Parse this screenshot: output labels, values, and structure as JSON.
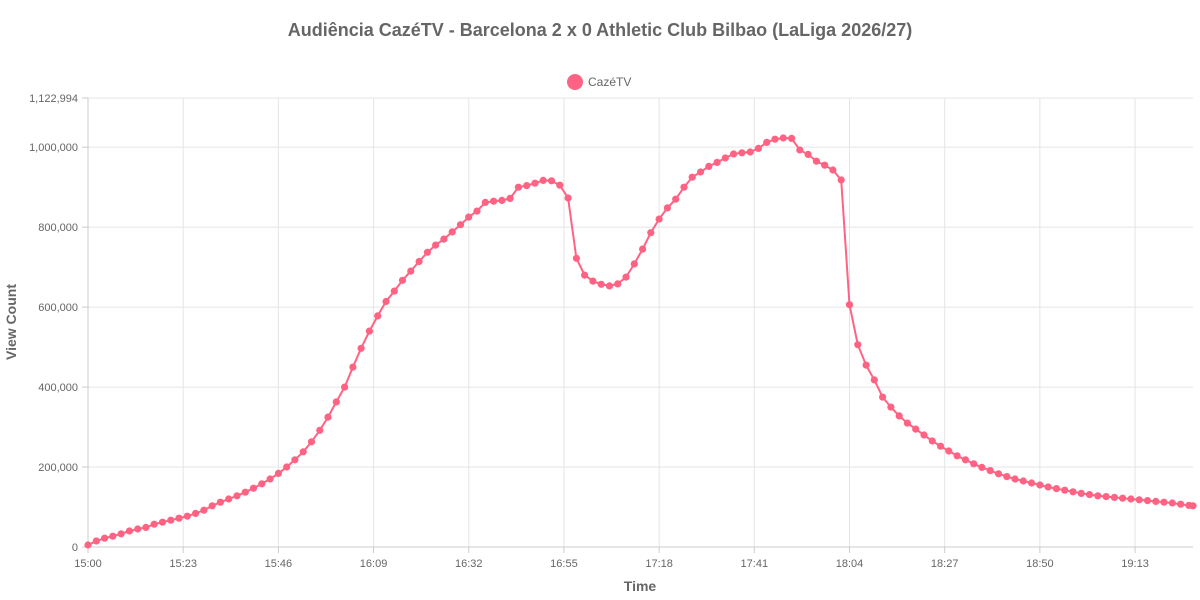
{
  "chart_data": {
    "type": "line",
    "title": "Audiência CazéTV - Barcelona 2 x 0 Athletic Club Bilbao (LaLiga 2026/27)",
    "xlabel": "Time",
    "ylabel": "View Count",
    "ylim": [
      0,
      1122994
    ],
    "y_ticks": [
      0,
      200000,
      400000,
      600000,
      800000,
      1000000,
      1122994
    ],
    "y_tick_labels": [
      "0",
      "200,000",
      "400,000",
      "600,000",
      "800,000",
      "1,000,000",
      "1,122,994"
    ],
    "x_ticks": [
      "15:00",
      "15:23",
      "15:46",
      "16:09",
      "16:32",
      "16:55",
      "17:18",
      "17:41",
      "18:04",
      "18:27",
      "18:50",
      "19:13"
    ],
    "xlim": [
      "15:00",
      "19:27"
    ],
    "grid": true,
    "legend": "top-center",
    "series": [
      {
        "name": "CazéTV",
        "color": "#ff6384",
        "points": [
          [
            "15:00",
            5000
          ],
          [
            "15:02",
            15000
          ],
          [
            "15:04",
            22000
          ],
          [
            "15:06",
            27000
          ],
          [
            "15:08",
            33000
          ],
          [
            "15:10",
            40000
          ],
          [
            "15:12",
            45000
          ],
          [
            "15:14",
            49000
          ],
          [
            "15:16",
            57000
          ],
          [
            "15:18",
            62000
          ],
          [
            "15:20",
            67000
          ],
          [
            "15:22",
            72000
          ],
          [
            "15:24",
            77000
          ],
          [
            "15:26",
            84000
          ],
          [
            "15:28",
            92000
          ],
          [
            "15:30",
            103000
          ],
          [
            "15:32",
            112000
          ],
          [
            "15:34",
            120000
          ],
          [
            "15:36",
            128000
          ],
          [
            "15:38",
            137000
          ],
          [
            "15:40",
            147000
          ],
          [
            "15:42",
            158000
          ],
          [
            "15:44",
            170000
          ],
          [
            "15:46",
            184000
          ],
          [
            "15:48",
            200000
          ],
          [
            "15:50",
            218000
          ],
          [
            "15:52",
            238000
          ],
          [
            "15:54",
            263000
          ],
          [
            "15:56",
            292000
          ],
          [
            "15:58",
            325000
          ],
          [
            "16:00",
            363000
          ],
          [
            "16:02",
            400000
          ],
          [
            "16:04",
            450000
          ],
          [
            "16:06",
            497000
          ],
          [
            "16:08",
            540000
          ],
          [
            "16:10",
            578000
          ],
          [
            "16:12",
            614000
          ],
          [
            "16:14",
            640000
          ],
          [
            "16:16",
            667000
          ],
          [
            "16:18",
            690000
          ],
          [
            "16:20",
            714000
          ],
          [
            "16:22",
            737000
          ],
          [
            "16:24",
            755000
          ],
          [
            "16:26",
            770000
          ],
          [
            "16:28",
            788000
          ],
          [
            "16:30",
            806000
          ],
          [
            "16:32",
            825000
          ],
          [
            "16:34",
            840000
          ],
          [
            "16:36",
            862000
          ],
          [
            "16:38",
            865000
          ],
          [
            "16:40",
            867000
          ],
          [
            "16:42",
            872000
          ],
          [
            "16:44",
            900000
          ],
          [
            "16:46",
            904000
          ],
          [
            "16:48",
            910000
          ],
          [
            "16:50",
            917000
          ],
          [
            "16:52",
            916000
          ],
          [
            "16:54",
            905000
          ],
          [
            "16:56",
            873000
          ],
          [
            "16:58",
            722000
          ],
          [
            "17:00",
            680000
          ],
          [
            "17:02",
            665000
          ],
          [
            "17:04",
            657000
          ],
          [
            "17:06",
            653000
          ],
          [
            "17:08",
            658000
          ],
          [
            "17:10",
            675000
          ],
          [
            "17:12",
            708000
          ],
          [
            "17:14",
            745000
          ],
          [
            "17:16",
            786000
          ],
          [
            "17:18",
            820000
          ],
          [
            "17:20",
            848000
          ],
          [
            "17:22",
            870000
          ],
          [
            "17:24",
            900000
          ],
          [
            "17:26",
            925000
          ],
          [
            "17:28",
            938000
          ],
          [
            "17:30",
            952000
          ],
          [
            "17:32",
            962000
          ],
          [
            "17:34",
            973000
          ],
          [
            "17:36",
            983000
          ],
          [
            "17:38",
            986000
          ],
          [
            "17:40",
            988000
          ],
          [
            "17:42",
            997000
          ],
          [
            "17:44",
            1012000
          ],
          [
            "17:46",
            1020000
          ],
          [
            "17:48",
            1023000
          ],
          [
            "17:50",
            1022000
          ],
          [
            "17:52",
            993000
          ],
          [
            "17:54",
            982000
          ],
          [
            "17:56",
            965000
          ],
          [
            "17:58",
            955000
          ],
          [
            "18:00",
            943000
          ],
          [
            "18:02",
            918000
          ],
          [
            "18:04",
            606000
          ],
          [
            "18:06",
            506000
          ],
          [
            "18:08",
            455000
          ],
          [
            "18:10",
            418000
          ],
          [
            "18:12",
            375000
          ],
          [
            "18:14",
            350000
          ],
          [
            "18:16",
            328000
          ],
          [
            "18:18",
            310000
          ],
          [
            "18:20",
            295000
          ],
          [
            "18:22",
            280000
          ],
          [
            "18:24",
            265000
          ],
          [
            "18:26",
            252000
          ],
          [
            "18:28",
            240000
          ],
          [
            "18:30",
            228000
          ],
          [
            "18:32",
            218000
          ],
          [
            "18:34",
            208000
          ],
          [
            "18:36",
            199000
          ],
          [
            "18:38",
            191000
          ],
          [
            "18:40",
            183000
          ],
          [
            "18:42",
            176000
          ],
          [
            "18:44",
            170000
          ],
          [
            "18:46",
            165000
          ],
          [
            "18:48",
            160000
          ],
          [
            "18:50",
            155000
          ],
          [
            "18:52",
            150000
          ],
          [
            "18:54",
            146000
          ],
          [
            "18:56",
            142000
          ],
          [
            "18:58",
            138000
          ],
          [
            "19:00",
            134000
          ],
          [
            "19:02",
            131000
          ],
          [
            "19:04",
            128000
          ],
          [
            "19:06",
            126000
          ],
          [
            "19:08",
            124000
          ],
          [
            "19:10",
            122000
          ],
          [
            "19:12",
            120000
          ],
          [
            "19:14",
            118000
          ],
          [
            "19:16",
            116000
          ],
          [
            "19:18",
            114000
          ],
          [
            "19:20",
            112000
          ],
          [
            "19:22",
            110000
          ],
          [
            "19:24",
            107000
          ],
          [
            "19:26",
            104000
          ],
          [
            "19:27",
            103000
          ]
        ]
      }
    ]
  }
}
